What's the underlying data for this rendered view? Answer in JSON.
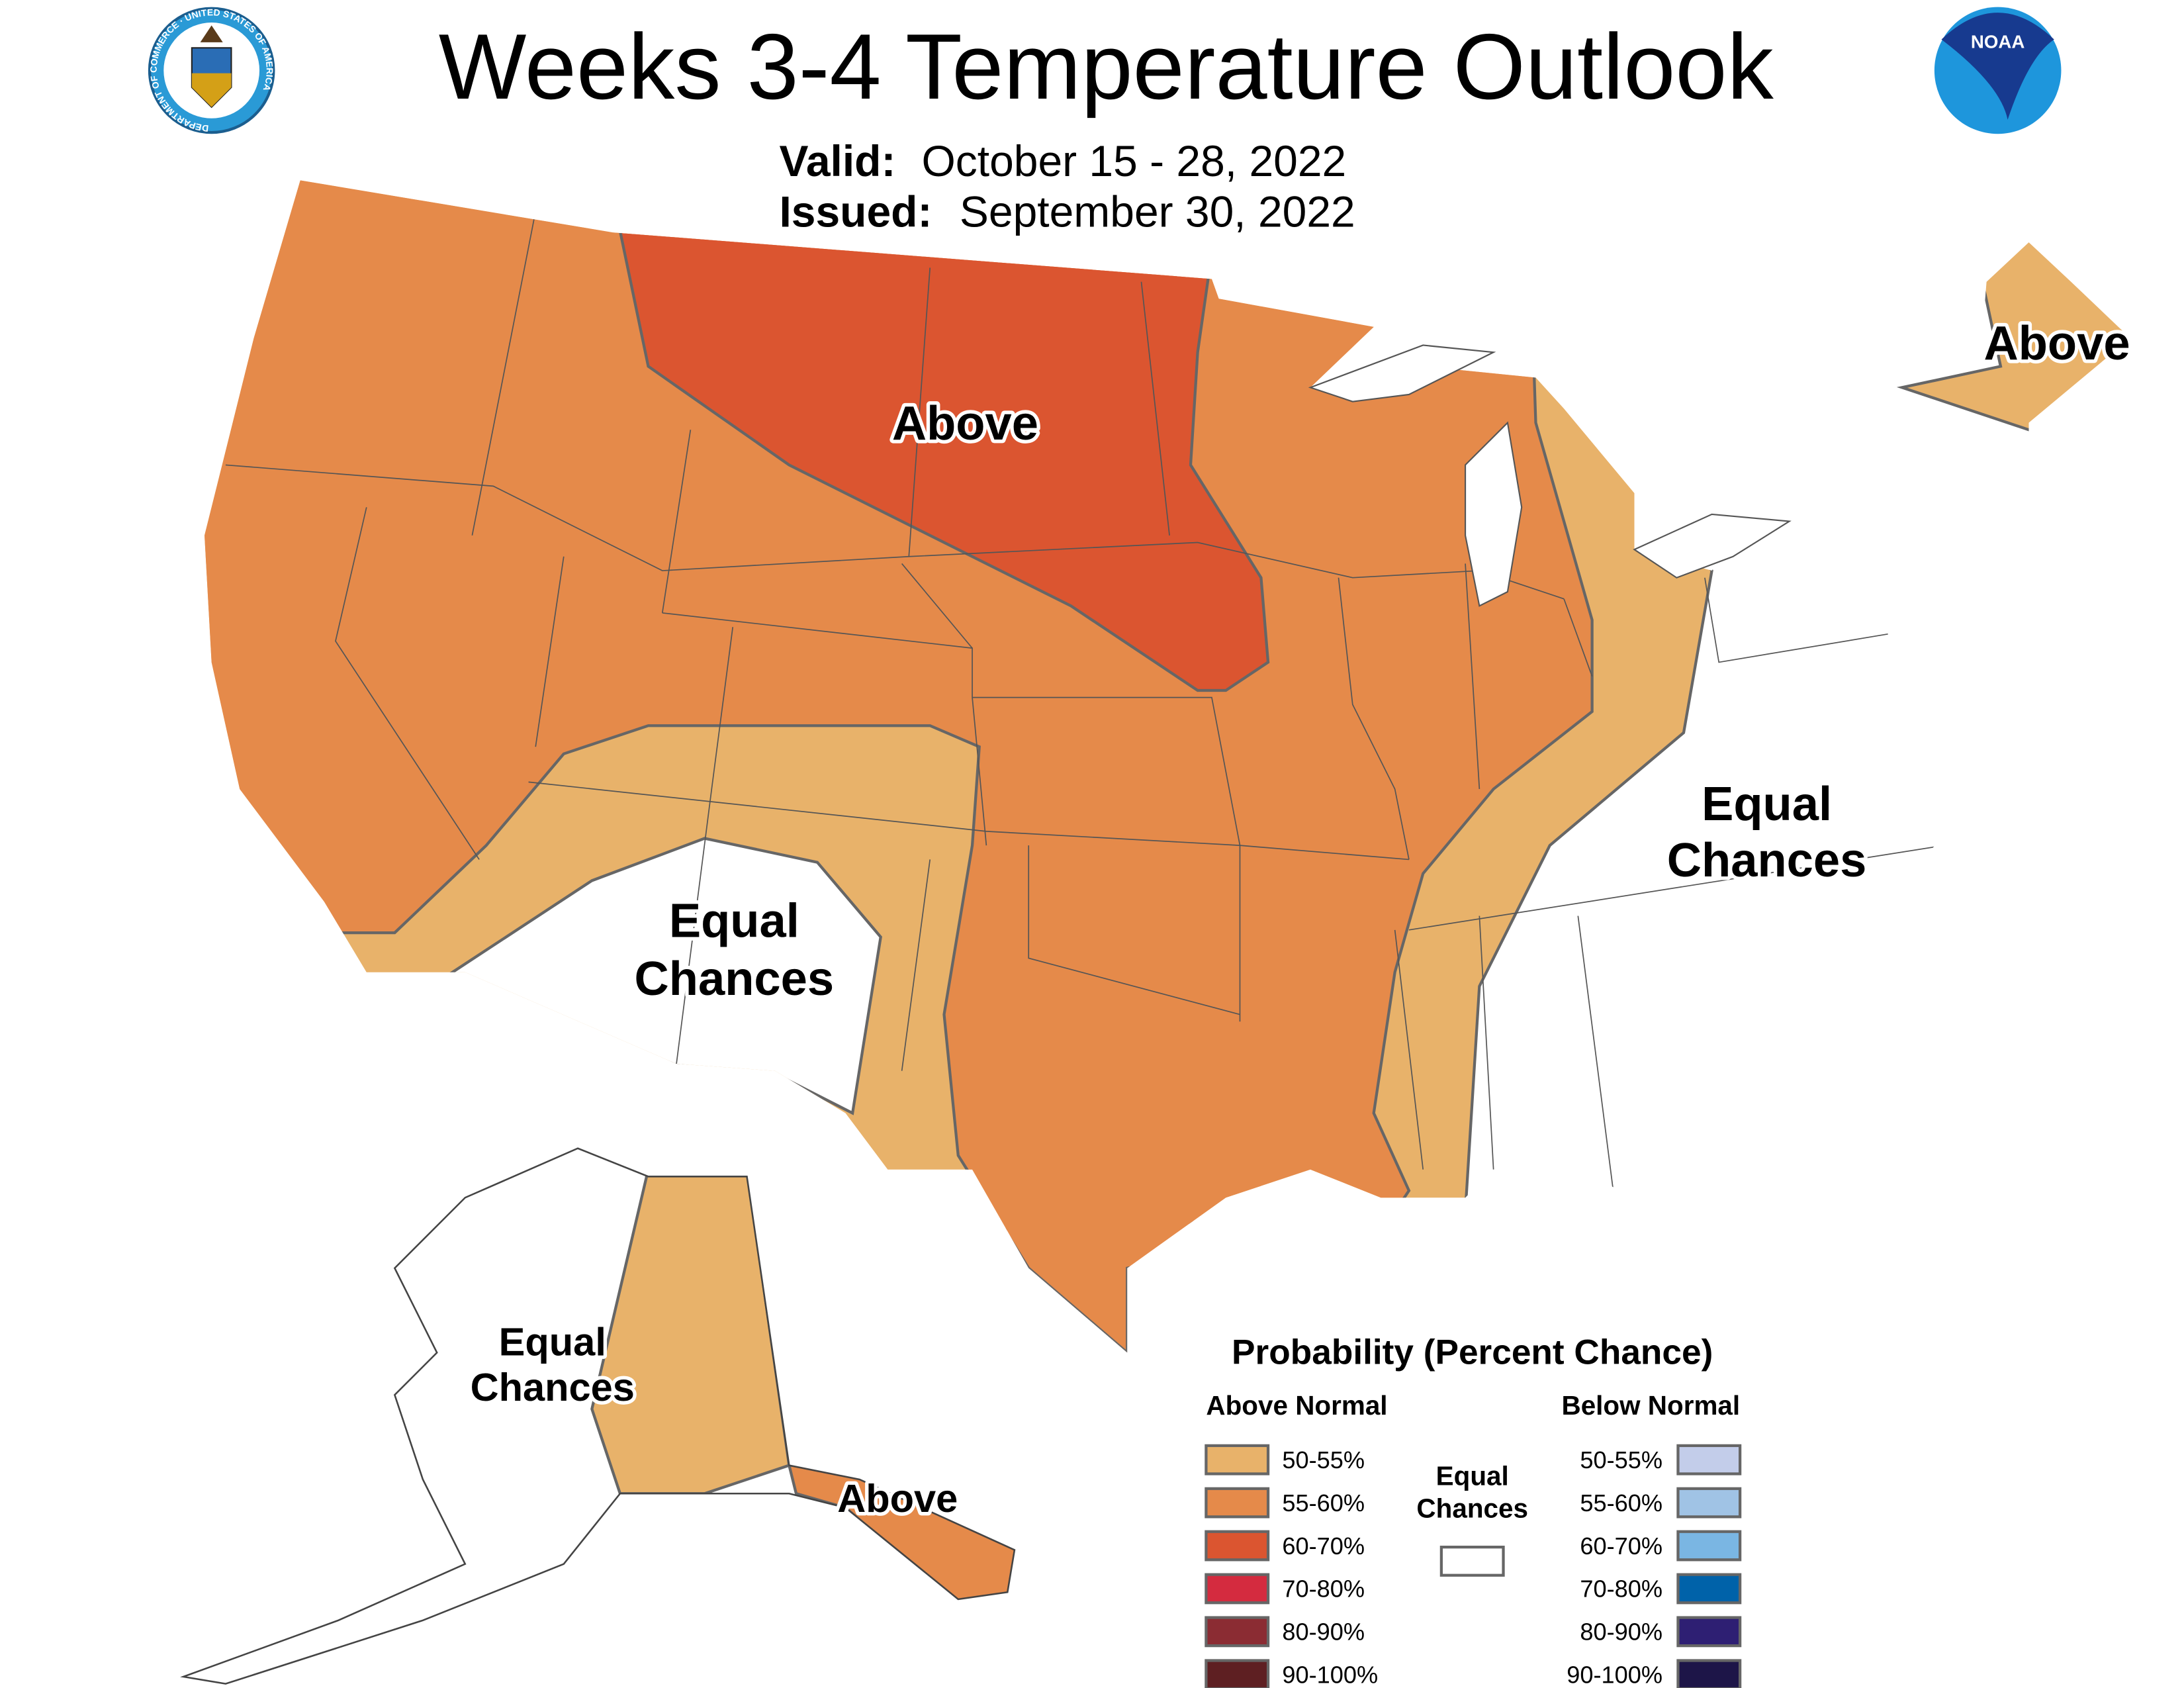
{
  "header": {
    "title": "Weeks 3-4 Temperature Outlook",
    "valid_label": "Valid:",
    "valid_value": "October 15 - 28, 2022",
    "issued_label": "Issued:",
    "issued_value": "September 30, 2022",
    "left_logo": "Department of Commerce seal",
    "left_logo_text": "DEPARTMENT OF COMMERCE · UNITED STATES OF AMERICA",
    "right_logo": "NOAA logo",
    "right_logo_text": "NOAA"
  },
  "map_labels": {
    "north_central": "Above",
    "maine": "Above",
    "southwest_line1": "Equal",
    "southwest_line2": "Chances",
    "east_line1": "Equal",
    "east_line2": "Chances",
    "alaska_west_line1": "Equal",
    "alaska_west_line2": "Chances",
    "alaska_southeast": "Above"
  },
  "legend": {
    "title": "Probability (Percent Chance)",
    "above_heading": "Above Normal",
    "below_heading": "Below Normal",
    "equal_line1": "Equal",
    "equal_line2": "Chances",
    "equal_color": "#ffffff",
    "above": [
      {
        "label": "50-55%",
        "color": "#e8b26a"
      },
      {
        "label": "55-60%",
        "color": "#e58a4a"
      },
      {
        "label": "60-70%",
        "color": "#db5530"
      },
      {
        "label": "70-80%",
        "color": "#d42b3f"
      },
      {
        "label": "80-90%",
        "color": "#8b2c33"
      },
      {
        "label": "90-100%",
        "color": "#5e1f22"
      }
    ],
    "below": [
      {
        "label": "50-55%",
        "color": "#c3cdea"
      },
      {
        "label": "55-60%",
        "color": "#a0c3e5"
      },
      {
        "label": "60-70%",
        "color": "#7ab6e3"
      },
      {
        "label": "70-80%",
        "color": "#0062a9"
      },
      {
        "label": "80-90%",
        "color": "#2e1f73"
      },
      {
        "label": "90-100%",
        "color": "#1d1548"
      }
    ]
  }
}
